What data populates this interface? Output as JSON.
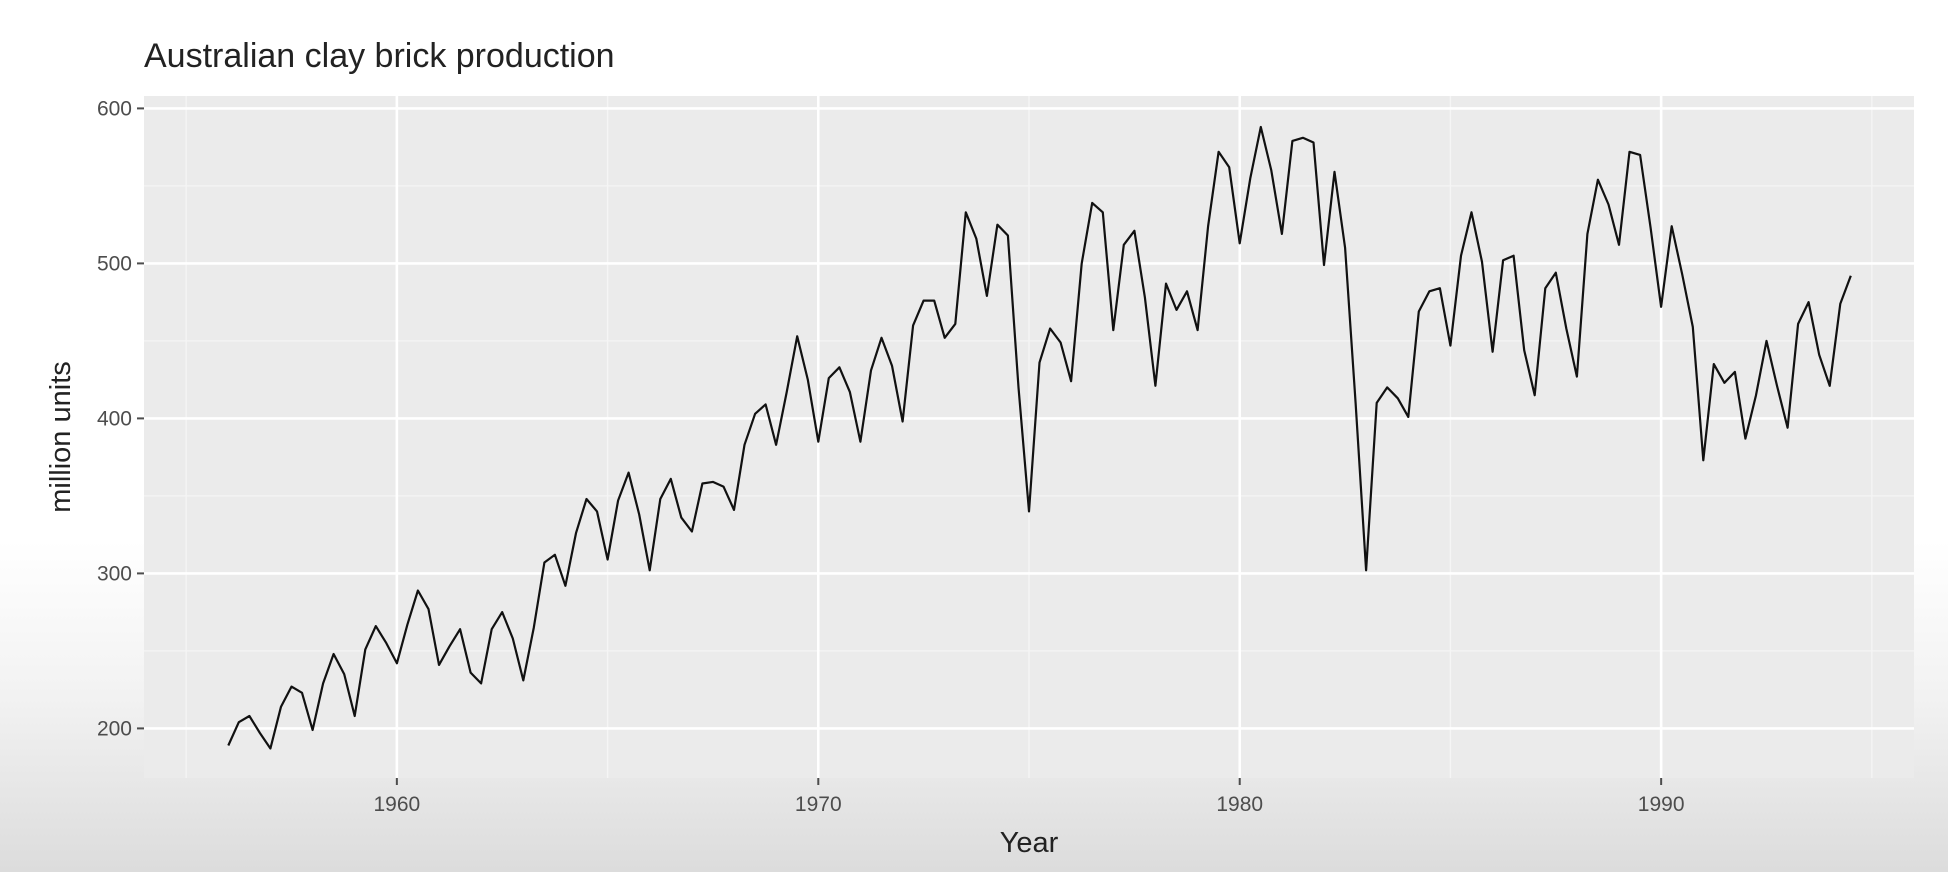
{
  "chart_data": {
    "type": "line",
    "title": "Australian clay brick production",
    "xlabel": "Year",
    "ylabel": "million units",
    "xlim": [
      1954,
      1996
    ],
    "ylim": [
      168,
      608
    ],
    "x_ticks": [
      1960,
      1970,
      1980,
      1990
    ],
    "y_ticks": [
      200,
      300,
      400,
      500,
      600
    ],
    "grid": true,
    "legend": "none",
    "x_start": 1956.0,
    "x_step": 0.25,
    "series": [
      {
        "values": [
          189,
          204,
          208,
          197,
          187,
          214,
          227,
          223,
          199,
          229,
          248,
          235,
          208,
          251,
          266,
          255,
          242,
          267,
          289,
          277,
          241,
          253,
          264,
          236,
          229,
          264,
          275,
          258,
          231,
          265,
          307,
          312,
          292,
          326,
          348,
          340,
          309,
          347,
          365,
          338,
          302,
          348,
          361,
          336,
          327,
          358,
          359,
          356,
          341,
          383,
          403,
          409,
          383,
          417,
          453,
          425,
          385,
          426,
          433,
          417,
          385,
          431,
          452,
          434,
          398,
          460,
          476,
          476,
          452,
          461,
          533,
          516,
          479,
          525,
          518,
          420,
          340,
          436,
          458,
          449,
          424,
          500,
          539,
          533,
          457,
          512,
          521,
          478,
          421,
          487,
          470,
          482,
          457,
          524,
          572,
          562,
          513,
          555,
          588,
          560,
          519,
          579,
          581,
          578,
          499,
          559,
          510,
          410,
          302,
          410,
          420,
          413,
          401,
          469,
          482,
          484,
          447,
          505,
          533,
          501,
          443,
          502,
          505,
          444,
          415,
          484,
          494,
          458,
          427,
          519,
          554,
          538,
          512,
          572,
          570,
          523,
          472,
          524,
          493,
          459,
          373,
          435,
          423,
          430,
          387,
          415,
          450,
          421,
          394,
          461,
          475,
          441,
          421,
          474,
          492
        ]
      }
    ]
  }
}
